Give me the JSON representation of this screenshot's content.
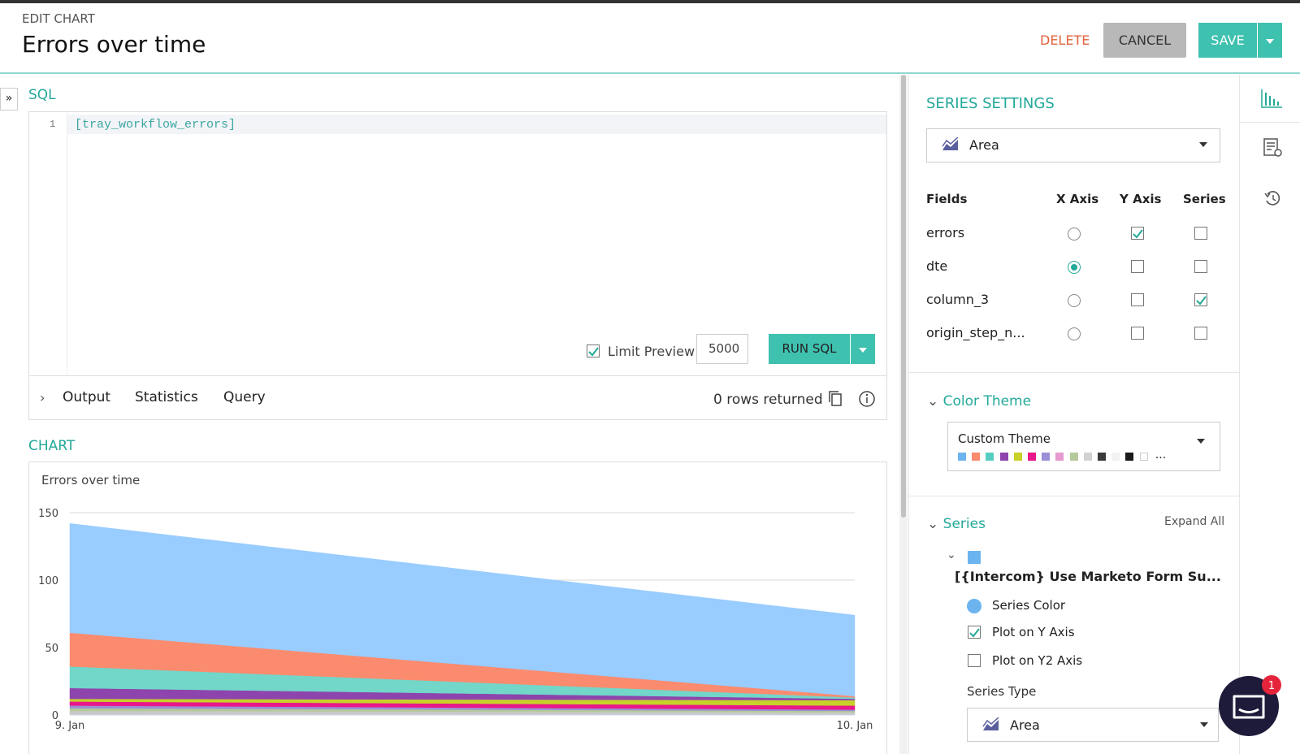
{
  "header": {
    "kicker": "EDIT CHART",
    "title": "Errors over time",
    "delete": "DELETE",
    "cancel": "CANCEL",
    "save": "SAVE"
  },
  "sql": {
    "label": "SQL",
    "line_number": "1",
    "code": "[tray_workflow_errors]",
    "limit_preview": "Limit Preview",
    "limit_checked": true,
    "limit": "5000",
    "run": "RUN SQL"
  },
  "results": {
    "tabs": [
      "Output",
      "Statistics",
      "Query"
    ],
    "status": "0 rows returned"
  },
  "chart_label": "CHART",
  "chart_data": {
    "type": "area",
    "title": "Errors over time",
    "categories": [
      "9. Jan",
      "10. Jan"
    ],
    "ylim": [
      0,
      150
    ],
    "yticks": [
      0,
      50,
      100,
      150
    ],
    "grid": true,
    "stacked": true,
    "series": [
      {
        "color": "#c9c9c9",
        "values": [
          3,
          2
        ]
      },
      {
        "color": "#b5c99a",
        "values": [
          2,
          1
        ]
      },
      {
        "color": "#9b8fd6",
        "values": [
          2,
          1
        ]
      },
      {
        "color": "#e8178a",
        "values": [
          3,
          3
        ]
      },
      {
        "color": "#c7d12a",
        "values": [
          2,
          4
        ]
      },
      {
        "color": "#8e44ad",
        "values": [
          8,
          1
        ]
      },
      {
        "color": "#72d6c9",
        "values": [
          16,
          1
        ]
      },
      {
        "color": "#fa8b6e",
        "values": [
          25,
          1
        ]
      },
      {
        "name": "[{Intercom} Use Marketo Form Su...",
        "color": "#99ccff",
        "values": [
          81,
          60
        ]
      }
    ]
  },
  "series_settings": {
    "title": "SERIES SETTINGS",
    "chart_type": "Area",
    "columns": [
      "Fields",
      "X Axis",
      "Y Axis",
      "Series"
    ],
    "fields": [
      {
        "name": "errors",
        "x": false,
        "y": true,
        "series": false
      },
      {
        "name": "dte",
        "x": true,
        "y": false,
        "series": false
      },
      {
        "name": "column_3",
        "x": false,
        "y": false,
        "series": true
      },
      {
        "name": "origin_step_n...",
        "x": false,
        "y": false,
        "series": false
      }
    ],
    "color_theme": {
      "label": "Color Theme",
      "name": "Custom Theme",
      "more": "...",
      "swatches": [
        "#6cb4f0",
        "#fa8b6e",
        "#56cfc0",
        "#8e44ad",
        "#c7d12a",
        "#e8178a",
        "#9b8fd6",
        "#e79ad0",
        "#b5c99a",
        "#d2d2d2",
        "#3a3a3a",
        "#f2f2f2",
        "#1a1a1a",
        "#ffffff"
      ]
    },
    "series": {
      "label": "Series",
      "expand": "Expand All",
      "name": "[{Intercom} Use Marketo Form Su...",
      "color": "#6cb4f0",
      "series_color": "Series Color",
      "plot_y": "Plot on Y Axis",
      "plot_y_checked": true,
      "plot_y2": "Plot on Y2 Axis",
      "plot_y2_checked": false,
      "type_label": "Series Type",
      "type": "Area"
    }
  },
  "chat": {
    "badge": 1
  }
}
